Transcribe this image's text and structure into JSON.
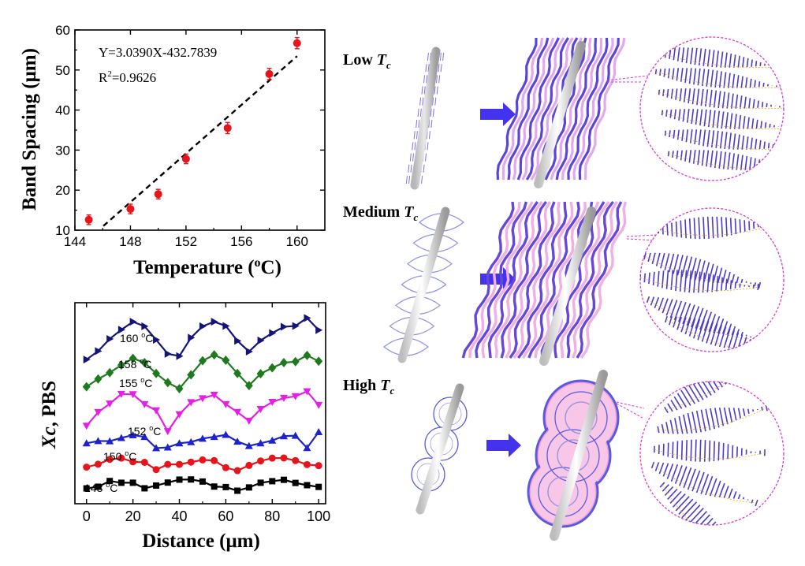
{
  "chart_data": [
    {
      "type": "scatter",
      "xlabel": "Temperature (",
      "xlabel_sup": "o",
      "xlabel_tail": "C)",
      "ylabel": "Band Spacing (μm)",
      "xlim": [
        144,
        162
      ],
      "ylim": [
        10,
        60
      ],
      "xticks": [
        144,
        148,
        152,
        156,
        160
      ],
      "yticks": [
        10,
        20,
        30,
        40,
        50,
        60
      ],
      "points": [
        {
          "x": 145,
          "y": 12.6,
          "err": 1.2
        },
        {
          "x": 148,
          "y": 15.3,
          "err": 1.2
        },
        {
          "x": 150,
          "y": 19.0,
          "err": 1.2
        },
        {
          "x": 152,
          "y": 27.8,
          "err": 1.2
        },
        {
          "x": 155,
          "y": 35.5,
          "err": 1.4
        },
        {
          "x": 158,
          "y": 49.0,
          "err": 1.4
        },
        {
          "x": 160,
          "y": 56.7,
          "err": 1.4
        }
      ],
      "fit": {
        "slope": 3.039,
        "intercept": -432.7839,
        "x_range": [
          146.05,
          160
        ]
      },
      "equation": "Y=3.0390X-432.7839",
      "r2_label": "R",
      "r2_sup": "2",
      "r2_value": "=0.9626",
      "marker_color": "#e8141c",
      "fit_color": "#000000"
    },
    {
      "type": "line",
      "xlabel": "Distance (μm)",
      "ylabel_italic": "Xc",
      "ylabel_rest": ", PBS",
      "xlim": [
        -5,
        103
      ],
      "xticks": [
        0,
        20,
        40,
        60,
        80,
        100
      ],
      "yticks_shown": false,
      "series": [
        {
          "name": "148 ",
          "unit": "C",
          "color": "#000000",
          "marker": "square",
          "x": [
            0,
            5,
            10,
            15,
            20,
            25,
            30,
            35,
            40,
            45,
            50,
            55,
            60,
            65,
            70,
            75,
            80,
            85,
            90,
            95,
            100
          ],
          "y": [
            0.42,
            0.9,
            2.55,
            2.05,
            2.05,
            0.45,
            1.25,
            2.1,
            2.95,
            3.0,
            2.4,
            0.95,
            0.8,
            -0.25,
            0.7,
            2.05,
            2.5,
            2.9,
            2.0,
            1.35,
            0.85
          ]
        },
        {
          "name": "150 ",
          "unit": "C",
          "color": "#e8141c",
          "marker": "circle",
          "x": [
            0,
            5,
            10,
            15,
            20,
            25,
            30,
            35,
            40,
            45,
            50,
            55,
            60,
            65,
            70,
            75,
            80,
            85,
            90,
            95,
            100
          ],
          "y": [
            6.55,
            7.4,
            8.8,
            9.15,
            8.1,
            7.95,
            5.85,
            7.35,
            7.35,
            8.0,
            8.65,
            8.45,
            6.4,
            5.55,
            7.05,
            8.35,
            9.15,
            9.2,
            8.45,
            7.3,
            7.0
          ]
        },
        {
          "name": "152 ",
          "unit": "C",
          "color": "#1e22cc",
          "marker": "triangle-up",
          "x": [
            0,
            5,
            10,
            15,
            20,
            25,
            30,
            35,
            40,
            45,
            50,
            55,
            60,
            65,
            70,
            75,
            80,
            85,
            90,
            95,
            100
          ],
          "y": [
            13.45,
            14.1,
            14.05,
            15.0,
            15.8,
            15.3,
            12.05,
            12.25,
            13.45,
            13.8,
            14.8,
            15.3,
            15.9,
            13.95,
            12.7,
            13.45,
            14.25,
            15.5,
            15.65,
            12.1,
            16.7
          ]
        },
        {
          "name": "155 ",
          "unit": "C",
          "color": "#e61fe6",
          "marker": "triangle-down",
          "x": [
            0,
            5,
            10,
            15,
            20,
            25,
            30,
            35,
            40,
            45,
            50,
            55,
            60,
            65,
            70,
            75,
            80,
            85,
            90,
            95,
            100
          ],
          "y": [
            18.45,
            22.4,
            24.85,
            27.65,
            27.55,
            24.7,
            22.9,
            16.9,
            21.8,
            25.25,
            26.4,
            27.4,
            24.7,
            22.45,
            19.9,
            23.3,
            25.35,
            26.5,
            27.0,
            28.4,
            24.45
          ]
        },
        {
          "name": "158 ",
          "unit": "C",
          "color": "#1f7a1f",
          "marker": "diamond",
          "x": [
            0,
            5,
            10,
            15,
            20,
            25,
            30,
            35,
            40,
            45,
            50,
            55,
            60,
            65,
            70,
            75,
            80,
            85,
            90,
            95,
            100
          ],
          "y": [
            29.75,
            32.0,
            33.8,
            36.0,
            37.95,
            36.7,
            33.6,
            30.95,
            29.2,
            33.2,
            37.25,
            38.95,
            37.4,
            33.6,
            30.1,
            33.5,
            35.2,
            36.7,
            37.0,
            38.8,
            37.1
          ]
        },
        {
          "name": "160 ",
          "unit": "C",
          "color": "#14147a",
          "marker": "triangle-right",
          "x": [
            0,
            5,
            10,
            15,
            20,
            25,
            30,
            35,
            40,
            45,
            50,
            55,
            60,
            65,
            70,
            75,
            80,
            85,
            90,
            95,
            100
          ],
          "y": [
            37.6,
            40.05,
            43.55,
            46.2,
            48.5,
            47.2,
            43.3,
            39.25,
            38.6,
            43.9,
            47.2,
            48.5,
            47.3,
            43.0,
            39.9,
            43.1,
            45.25,
            47.05,
            47.3,
            49.6,
            46.1
          ]
        }
      ],
      "series_label_sup": "o"
    }
  ],
  "schematic": {
    "rows": [
      {
        "label": "Low ",
        "label_italic": "T",
        "label_sub": "c"
      },
      {
        "label": "Medium ",
        "label_italic": "T",
        "label_sub": "c"
      },
      {
        "label": "High ",
        "label_italic": "T",
        "label_sub": "c"
      }
    ],
    "colors": {
      "arrow": "#4433ee",
      "lamella": "#6e4fd6",
      "pink": "#f4a8d8",
      "magnify": "#d63bd6",
      "fiber": "#e6e6e6"
    }
  }
}
